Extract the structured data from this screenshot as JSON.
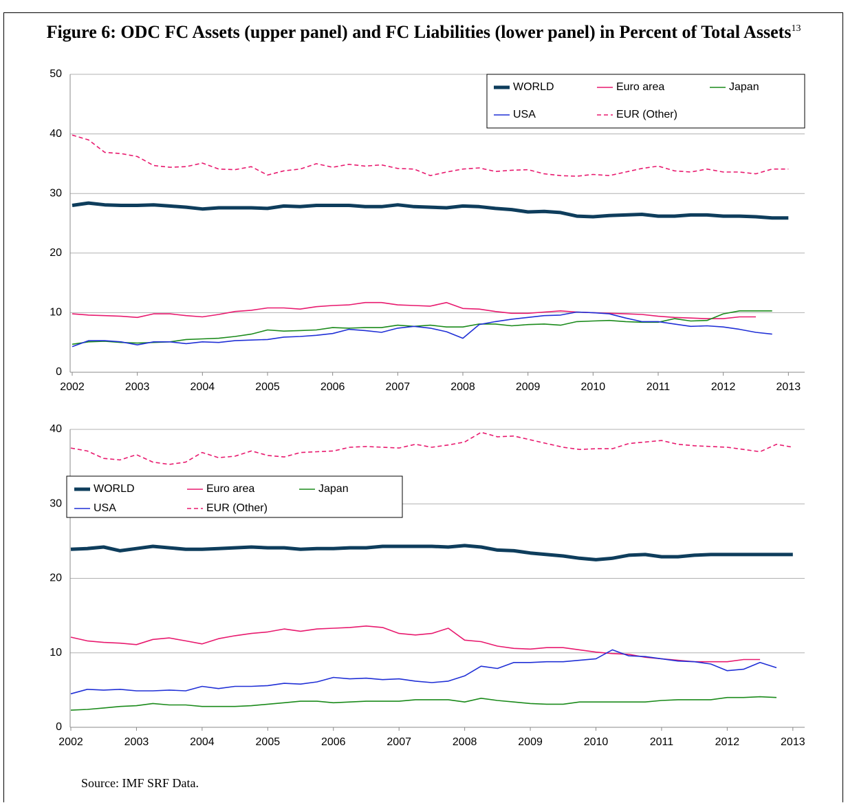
{
  "title": "Figure 6: ODC FC Assets (upper panel) and FC Liabilities (lower panel) in Percent of Total Assets",
  "title_footnote": "13",
  "source": "Source: IMF SRF Data.",
  "chart_data": [
    {
      "type": "line",
      "x": [
        2002,
        2002.25,
        2002.5,
        2002.75,
        2003,
        2003.25,
        2003.5,
        2003.75,
        2004,
        2004.25,
        2004.5,
        2004.75,
        2005,
        2005.25,
        2005.5,
        2005.75,
        2006,
        2006.25,
        2006.5,
        2006.75,
        2007,
        2007.25,
        2007.5,
        2007.75,
        2008,
        2008.25,
        2008.5,
        2008.75,
        2009,
        2009.25,
        2009.5,
        2009.75,
        2010,
        2010.25,
        2010.5,
        2010.75,
        2011,
        2011.25,
        2011.5,
        2011.75,
        2012,
        2012.25,
        2012.5,
        2012.75,
        2013
      ],
      "xlim": [
        2002,
        2013.25
      ],
      "xticks": [
        2002,
        2003,
        2004,
        2005,
        2006,
        2007,
        2008,
        2009,
        2010,
        2011,
        2012,
        2013
      ],
      "ylim": [
        0,
        50
      ],
      "yticks": [
        0,
        10,
        20,
        30,
        40,
        50
      ],
      "grid": true,
      "legend": "upper right",
      "series": [
        {
          "name": "WORLD",
          "color": "#0e3d5c",
          "width": 5,
          "dash": false,
          "values": [
            28.0,
            28.4,
            28.1,
            28.0,
            28.0,
            28.1,
            27.9,
            27.7,
            27.4,
            27.6,
            27.6,
            27.6,
            27.5,
            27.9,
            27.8,
            28.0,
            28.0,
            28.0,
            27.8,
            27.8,
            28.1,
            27.8,
            27.7,
            27.6,
            27.9,
            27.8,
            27.5,
            27.3,
            26.9,
            27.0,
            26.8,
            26.2,
            26.1,
            26.3,
            26.4,
            26.5,
            26.2,
            26.2,
            26.4,
            26.4,
            26.2,
            26.2,
            26.1,
            25.9,
            25.9
          ]
        },
        {
          "name": "Euro area",
          "color": "#e8196e",
          "width": 1.6,
          "dash": false,
          "values": [
            9.8,
            9.6,
            9.5,
            9.4,
            9.2,
            9.8,
            9.8,
            9.5,
            9.3,
            9.7,
            10.2,
            10.4,
            10.8,
            10.8,
            10.6,
            11.0,
            11.2,
            11.3,
            11.7,
            11.7,
            11.3,
            11.2,
            11.1,
            11.7,
            10.7,
            10.6,
            10.2,
            9.9,
            9.9,
            10.1,
            10.3,
            10.1,
            10.0,
            9.9,
            9.8,
            9.7,
            9.4,
            9.2,
            9.1,
            9.0,
            9.0,
            9.3,
            9.3,
            null,
            null
          ]
        },
        {
          "name": "Japan",
          "color": "#1a8a1a",
          "width": 1.6,
          "dash": false,
          "values": [
            4.7,
            5.1,
            5.2,
            5.0,
            4.9,
            5.0,
            5.1,
            5.5,
            5.6,
            5.7,
            6.0,
            6.4,
            7.1,
            6.9,
            7.0,
            7.1,
            7.5,
            7.4,
            7.5,
            7.5,
            7.9,
            7.7,
            7.9,
            7.6,
            7.6,
            8.1,
            8.1,
            7.8,
            8.0,
            8.1,
            7.9,
            8.5,
            8.6,
            8.7,
            8.5,
            8.4,
            8.4,
            9.0,
            8.6,
            8.7,
            9.8,
            10.3,
            10.3,
            10.3,
            null
          ]
        },
        {
          "name": "USA",
          "color": "#1f2fd6",
          "width": 1.6,
          "dash": false,
          "values": [
            4.3,
            5.3,
            5.3,
            5.1,
            4.6,
            5.1,
            5.1,
            4.8,
            5.1,
            5.0,
            5.3,
            5.4,
            5.5,
            5.9,
            6.0,
            6.2,
            6.5,
            7.2,
            7.0,
            6.7,
            7.4,
            7.7,
            7.4,
            6.8,
            5.7,
            8.0,
            8.5,
            8.9,
            9.2,
            9.5,
            9.6,
            10.1,
            10.0,
            9.8,
            9.1,
            8.5,
            8.5,
            8.1,
            7.7,
            7.8,
            7.6,
            7.2,
            6.7,
            6.4,
            null
          ]
        },
        {
          "name": "EUR (Other)",
          "color": "#e8196e",
          "width": 1.6,
          "dash": true,
          "values": [
            39.8,
            39.0,
            36.9,
            36.7,
            36.2,
            34.7,
            34.4,
            34.5,
            35.1,
            34.1,
            34.0,
            34.5,
            33.1,
            33.8,
            34.1,
            35.0,
            34.4,
            34.9,
            34.6,
            34.8,
            34.2,
            34.1,
            33.0,
            33.6,
            34.1,
            34.3,
            33.7,
            33.9,
            34.0,
            33.3,
            33.0,
            32.9,
            33.2,
            33.0,
            33.6,
            34.2,
            34.6,
            33.8,
            33.6,
            34.1,
            33.6,
            33.6,
            33.3,
            34.1,
            34.1
          ]
        }
      ]
    },
    {
      "type": "line",
      "x": [
        2002,
        2002.25,
        2002.5,
        2002.75,
        2003,
        2003.25,
        2003.5,
        2003.75,
        2004,
        2004.25,
        2004.5,
        2004.75,
        2005,
        2005.25,
        2005.5,
        2005.75,
        2006,
        2006.25,
        2006.5,
        2006.75,
        2007,
        2007.25,
        2007.5,
        2007.75,
        2008,
        2008.25,
        2008.5,
        2008.75,
        2009,
        2009.25,
        2009.5,
        2009.75,
        2010,
        2010.25,
        2010.5,
        2010.75,
        2011,
        2011.25,
        2011.5,
        2011.75,
        2012,
        2012.25,
        2012.5,
        2012.75,
        2013
      ],
      "xlim": [
        2002,
        2013.18
      ],
      "xticks": [
        2002,
        2003,
        2004,
        2005,
        2006,
        2007,
        2008,
        2009,
        2010,
        2011,
        2012,
        2013
      ],
      "ylim": [
        0,
        40
      ],
      "yticks": [
        0,
        10,
        20,
        30,
        40
      ],
      "grid": true,
      "legend": "center left",
      "series": [
        {
          "name": "WORLD",
          "color": "#0e3d5c",
          "width": 5,
          "dash": false,
          "values": [
            23.9,
            24.0,
            24.2,
            23.7,
            24.0,
            24.3,
            24.1,
            23.9,
            23.9,
            24.0,
            24.1,
            24.2,
            24.1,
            24.1,
            23.9,
            24.0,
            24.0,
            24.1,
            24.1,
            24.3,
            24.3,
            24.3,
            24.3,
            24.2,
            24.4,
            24.2,
            23.8,
            23.7,
            23.4,
            23.2,
            23.0,
            22.7,
            22.5,
            22.7,
            23.1,
            23.2,
            22.9,
            22.9,
            23.1,
            23.2,
            23.2,
            23.2,
            23.2,
            23.2,
            23.2
          ]
        },
        {
          "name": "Euro area",
          "color": "#e8196e",
          "width": 1.6,
          "dash": false,
          "values": [
            12.1,
            11.6,
            11.4,
            11.3,
            11.1,
            11.8,
            12.0,
            11.6,
            11.2,
            11.9,
            12.3,
            12.6,
            12.8,
            13.2,
            12.9,
            13.2,
            13.3,
            13.4,
            13.6,
            13.4,
            12.6,
            12.4,
            12.6,
            13.3,
            11.7,
            11.5,
            10.9,
            10.6,
            10.5,
            10.7,
            10.7,
            10.4,
            10.1,
            9.9,
            9.8,
            9.4,
            9.2,
            9.0,
            8.8,
            8.8,
            8.8,
            9.1,
            9.1,
            null,
            null
          ]
        },
        {
          "name": "Japan",
          "color": "#1a8a1a",
          "width": 1.6,
          "dash": false,
          "values": [
            2.3,
            2.4,
            2.6,
            2.8,
            2.9,
            3.2,
            3.0,
            3.0,
            2.8,
            2.8,
            2.8,
            2.9,
            3.1,
            3.3,
            3.5,
            3.5,
            3.3,
            3.4,
            3.5,
            3.5,
            3.5,
            3.7,
            3.7,
            3.7,
            3.4,
            3.9,
            3.6,
            3.4,
            3.2,
            3.1,
            3.1,
            3.4,
            3.4,
            3.4,
            3.4,
            3.4,
            3.6,
            3.7,
            3.7,
            3.7,
            4.0,
            4.0,
            4.1,
            4.0,
            null
          ]
        },
        {
          "name": "USA",
          "color": "#1f2fd6",
          "width": 1.6,
          "dash": false,
          "values": [
            4.5,
            5.1,
            5.0,
            5.1,
            4.9,
            4.9,
            5.0,
            4.9,
            5.5,
            5.2,
            5.5,
            5.5,
            5.6,
            5.9,
            5.8,
            6.1,
            6.7,
            6.5,
            6.6,
            6.4,
            6.5,
            6.2,
            6.0,
            6.2,
            6.9,
            8.2,
            7.9,
            8.7,
            8.7,
            8.8,
            8.8,
            9.0,
            9.2,
            10.4,
            9.6,
            9.5,
            9.2,
            8.9,
            8.8,
            8.5,
            7.6,
            7.8,
            8.7,
            8.0,
            null
          ]
        },
        {
          "name": "EUR (Other)",
          "color": "#e8196e",
          "width": 1.6,
          "dash": true,
          "values": [
            37.5,
            37.1,
            36.1,
            35.9,
            36.6,
            35.6,
            35.3,
            35.6,
            36.9,
            36.2,
            36.4,
            37.1,
            36.5,
            36.3,
            36.9,
            37.0,
            37.1,
            37.6,
            37.7,
            37.6,
            37.5,
            38.0,
            37.6,
            37.9,
            38.3,
            39.6,
            39.0,
            39.1,
            38.6,
            38.1,
            37.6,
            37.3,
            37.4,
            37.4,
            38.1,
            38.3,
            38.5,
            38.0,
            37.8,
            37.7,
            37.6,
            37.3,
            37.0,
            38.0,
            37.6
          ]
        }
      ]
    }
  ]
}
